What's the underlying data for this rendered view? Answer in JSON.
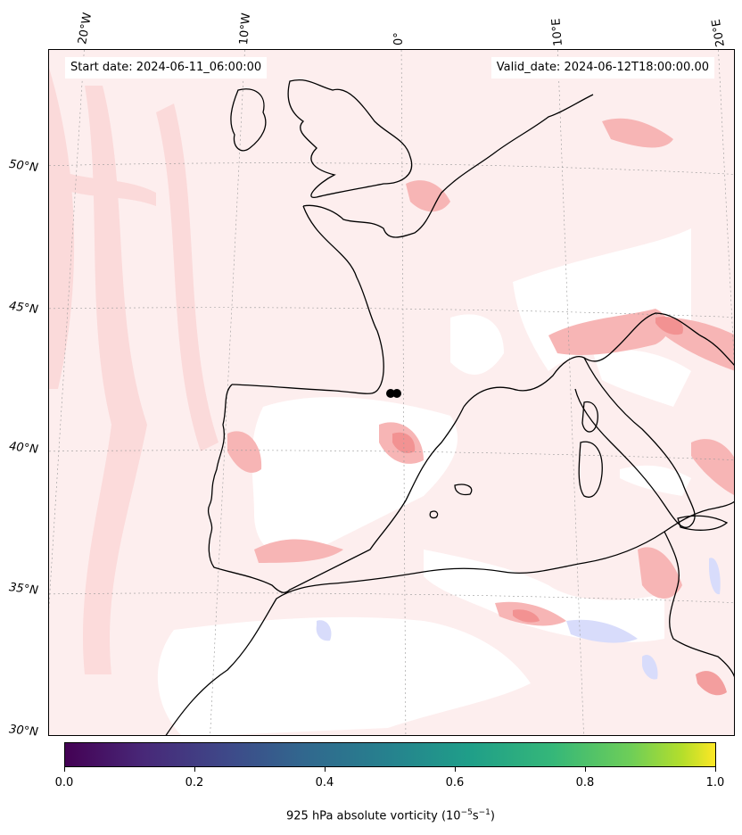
{
  "map": {
    "lon_labels": [
      "20°W",
      "10°W",
      "0°",
      "10°E",
      "20°E"
    ],
    "lat_labels": [
      "50°N",
      "45°N",
      "40°N",
      "35°N",
      "30°N"
    ],
    "start_date": "Start date: 2024-06-11_06:00:00",
    "valid_date": "Valid_date: 2024-06-12T18:00:00.00",
    "field": "925 hPa absolute vorticity",
    "colors": {
      "background_field": "#fdeeee",
      "positive": "#f8b7b7",
      "strong_positive": "#f07878",
      "negative": "#d6dcfb",
      "coastline": "#000000"
    },
    "marker": "track-point-icon"
  },
  "colorbar": {
    "ticks": [
      "0.0",
      "0.2",
      "0.4",
      "0.6",
      "0.8",
      "1.0"
    ],
    "label_prefix": "925 hPa absolute vorticity (10",
    "label_exp1": "−5",
    "label_mid": "s",
    "label_exp2": "−1",
    "label_suffix": ")",
    "colormap": "viridis"
  }
}
